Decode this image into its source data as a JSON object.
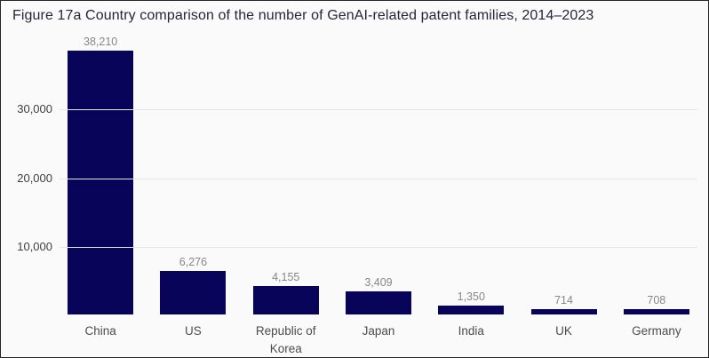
{
  "figure": {
    "title": "Figure 17a Country comparison of the number of GenAI-related patent families, 2014–2023"
  },
  "chart_data": {
    "type": "bar",
    "title": "Figure 17a Country comparison of the number of GenAI-related patent families, 2014–2023",
    "categories": [
      "China",
      "US",
      "Republic of Korea",
      "Japan",
      "India",
      "UK",
      "Germany"
    ],
    "values": [
      38210,
      6276,
      4155,
      3409,
      1350,
      714,
      708
    ],
    "value_labels": [
      "38,210",
      "6,276",
      "4,155",
      "3,409",
      "1,350",
      "714",
      "708"
    ],
    "xlabel": "",
    "ylabel": "",
    "ylim": [
      0,
      40000
    ],
    "yticks": [
      10000,
      20000,
      30000
    ],
    "ytick_labels": [
      "10,000",
      "20,000",
      "30,000"
    ],
    "grid": "horizontal",
    "legend": "none",
    "bar_color": "#07045a",
    "background_color": "#fafafa",
    "gridline_color": "#e7e7e7"
  }
}
